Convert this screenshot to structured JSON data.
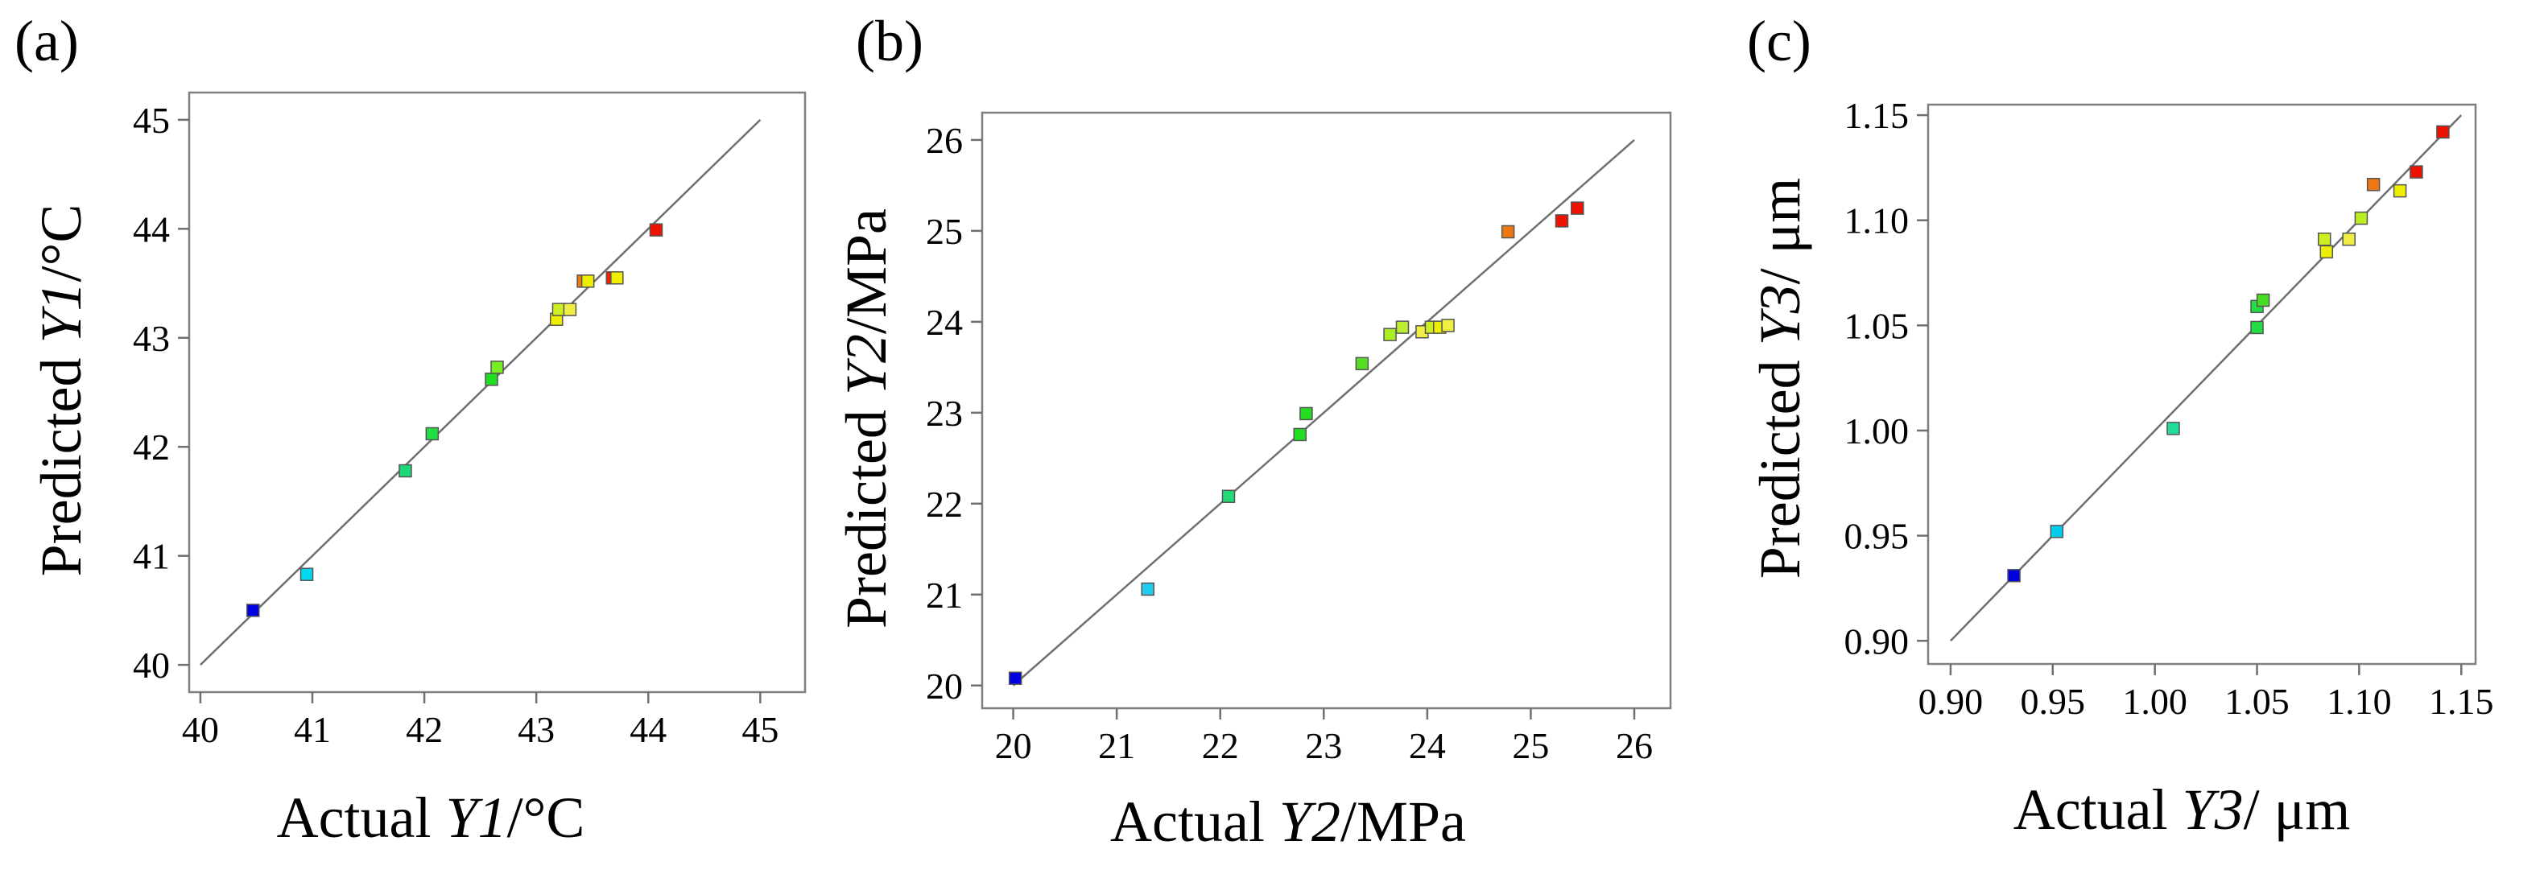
{
  "chart_data": [
    {
      "type": "scatter",
      "panel_label": "(a)",
      "xlabel": {
        "prefix": "Actual ",
        "var": "Y1",
        "unit": "/°C"
      },
      "ylabel": {
        "prefix": "Predicted ",
        "var": "Y1",
        "unit": "/°C"
      },
      "xlim": [
        39.9,
        45.4
      ],
      "ylim": [
        39.75,
        45.25
      ],
      "xticks": [
        40,
        41,
        42,
        43,
        44,
        45
      ],
      "yticks": [
        40,
        41,
        42,
        43,
        44,
        45
      ],
      "xtick_labels": [
        "40",
        "41",
        "42",
        "43",
        "44",
        "45"
      ],
      "ytick_labels": [
        "40",
        "41",
        "42",
        "43",
        "44",
        "45"
      ],
      "diagonal": [
        40,
        45
      ],
      "points": [
        {
          "x": 40.47,
          "y": 40.5,
          "color": "#0000e0"
        },
        {
          "x": 40.95,
          "y": 40.83,
          "color": "#00d8ee"
        },
        {
          "x": 41.83,
          "y": 41.78,
          "color": "#1ad877"
        },
        {
          "x": 42.07,
          "y": 42.12,
          "color": "#22dd44"
        },
        {
          "x": 42.6,
          "y": 42.62,
          "color": "#22dd22"
        },
        {
          "x": 42.65,
          "y": 42.73,
          "color": "#77ee22"
        },
        {
          "x": 43.18,
          "y": 43.17,
          "color": "#eeee00"
        },
        {
          "x": 43.2,
          "y": 43.26,
          "color": "#ccee22"
        },
        {
          "x": 43.3,
          "y": 43.26,
          "color": "#eeee44"
        },
        {
          "x": 43.42,
          "y": 43.52,
          "color": "#ee7711"
        },
        {
          "x": 43.46,
          "y": 43.52,
          "color": "#eeee00"
        },
        {
          "x": 43.68,
          "y": 43.55,
          "color": "#ee2200"
        },
        {
          "x": 43.72,
          "y": 43.55,
          "color": "#eeee00"
        },
        {
          "x": 44.07,
          "y": 43.99,
          "color": "#ee1100"
        }
      ]
    },
    {
      "type": "scatter",
      "panel_label": "(b)",
      "xlabel": {
        "prefix": "Actual ",
        "var": "Y2",
        "unit": "/MPa"
      },
      "ylabel": {
        "prefix": "Predicted ",
        "var": "Y2",
        "unit": "/MPa"
      },
      "xlim": [
        19.7,
        26.35
      ],
      "ylim": [
        19.75,
        26.3
      ],
      "xticks": [
        20,
        21,
        22,
        23,
        24,
        25,
        26
      ],
      "yticks": [
        20,
        21,
        22,
        23,
        24,
        25,
        26
      ],
      "xtick_labels": [
        "20",
        "21",
        "22",
        "23",
        "24",
        "25",
        "26"
      ],
      "ytick_labels": [
        "20",
        "21",
        "22",
        "23",
        "24",
        "25",
        "26"
      ],
      "diagonal": [
        20,
        26
      ],
      "points": [
        {
          "x": 20.02,
          "y": 20.08,
          "color": "#0000e0"
        },
        {
          "x": 21.3,
          "y": 21.06,
          "color": "#22ccee"
        },
        {
          "x": 22.08,
          "y": 22.08,
          "color": "#22d877"
        },
        {
          "x": 22.77,
          "y": 22.76,
          "color": "#22dd22"
        },
        {
          "x": 22.83,
          "y": 22.99,
          "color": "#22dd22"
        },
        {
          "x": 23.37,
          "y": 23.54,
          "color": "#55dd22"
        },
        {
          "x": 23.64,
          "y": 23.86,
          "color": "#aaee22"
        },
        {
          "x": 23.76,
          "y": 23.94,
          "color": "#bbee33"
        },
        {
          "x": 23.95,
          "y": 23.89,
          "color": "#eeee44"
        },
        {
          "x": 24.04,
          "y": 23.94,
          "color": "#ccee22"
        },
        {
          "x": 24.12,
          "y": 23.94,
          "color": "#eeee00"
        },
        {
          "x": 24.2,
          "y": 23.96,
          "color": "#eeee44"
        },
        {
          "x": 24.78,
          "y": 24.99,
          "color": "#ee7711"
        },
        {
          "x": 25.3,
          "y": 25.11,
          "color": "#ee1100"
        },
        {
          "x": 25.45,
          "y": 25.25,
          "color": "#ee1100"
        }
      ]
    },
    {
      "type": "scatter",
      "panel_label": "(c)",
      "xlabel": {
        "prefix": "Actual ",
        "var": "Y3",
        "unit": "/ μm"
      },
      "ylabel": {
        "prefix": "Predicted ",
        "var": "Y3",
        "unit": "/ μm"
      },
      "xlim": [
        0.889,
        1.157
      ],
      "ylim": [
        0.889,
        1.155
      ],
      "xticks": [
        0.9,
        0.95,
        1.0,
        1.05,
        1.1,
        1.15
      ],
      "yticks": [
        0.9,
        0.95,
        1.0,
        1.05,
        1.1,
        1.15
      ],
      "xtick_labels": [
        "0.90",
        "0.95",
        "1.00",
        "1.05",
        "1.10",
        "1.15"
      ],
      "ytick_labels": [
        "0.90",
        "0.95",
        "1.00",
        "1.05",
        "1.10",
        "1.15"
      ],
      "diagonal": [
        0.9,
        1.15
      ],
      "points": [
        {
          "x": 0.931,
          "y": 0.931,
          "color": "#0000e0"
        },
        {
          "x": 0.952,
          "y": 0.952,
          "color": "#00ccee"
        },
        {
          "x": 1.009,
          "y": 1.001,
          "color": "#22dd99"
        },
        {
          "x": 1.05,
          "y": 1.049,
          "color": "#22dd44"
        },
        {
          "x": 1.05,
          "y": 1.059,
          "color": "#22dd44"
        },
        {
          "x": 1.053,
          "y": 1.062,
          "color": "#44dd22"
        },
        {
          "x": 1.083,
          "y": 1.091,
          "color": "#ccee22"
        },
        {
          "x": 1.084,
          "y": 1.085,
          "color": "#eeee00"
        },
        {
          "x": 1.095,
          "y": 1.091,
          "color": "#eeee44"
        },
        {
          "x": 1.101,
          "y": 1.101,
          "color": "#bbee22"
        },
        {
          "x": 1.107,
          "y": 1.117,
          "color": "#ee7711"
        },
        {
          "x": 1.12,
          "y": 1.114,
          "color": "#eeee00"
        },
        {
          "x": 1.128,
          "y": 1.123,
          "color": "#ee1100"
        },
        {
          "x": 1.141,
          "y": 1.142,
          "color": "#ee1100"
        }
      ]
    }
  ]
}
